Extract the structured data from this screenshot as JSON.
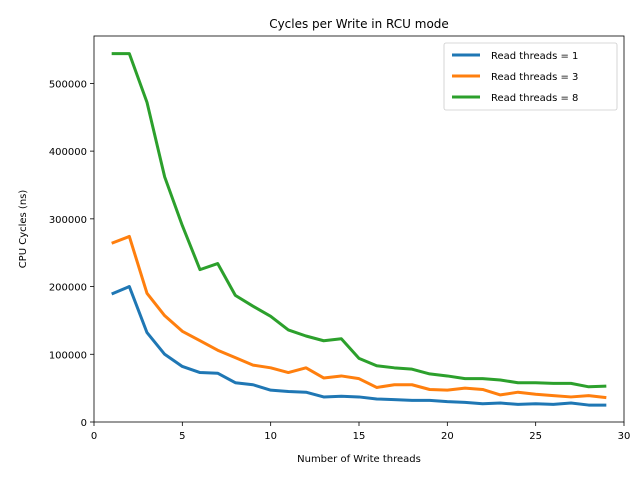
{
  "chart_data": {
    "type": "line",
    "title": "Cycles per Write in RCU mode",
    "xlabel": "Number of Write threads",
    "ylabel": "CPU Cycles (ns)",
    "xlim": [
      0,
      30
    ],
    "ylim": [
      0,
      570000
    ],
    "xticks": [
      0,
      5,
      10,
      15,
      20,
      25,
      30
    ],
    "yticks": [
      0,
      100000,
      200000,
      300000,
      400000,
      500000
    ],
    "grid": false,
    "legend_position": "top-right",
    "x": [
      1,
      2,
      3,
      4,
      5,
      6,
      7,
      8,
      9,
      10,
      11,
      12,
      13,
      14,
      15,
      16,
      17,
      18,
      19,
      20,
      21,
      22,
      23,
      24,
      25,
      26,
      27,
      28,
      29
    ],
    "series": [
      {
        "name": "Read threads = 1",
        "color": "#1f77b4",
        "values": [
          189000,
          200000,
          132000,
          100000,
          82000,
          73000,
          72000,
          58000,
          55000,
          47000,
          45000,
          44000,
          37000,
          38000,
          37000,
          34000,
          33000,
          32000,
          32000,
          30000,
          29000,
          27000,
          28000,
          26000,
          27000,
          26000,
          28000,
          25000,
          25000
        ]
      },
      {
        "name": "Read threads = 3",
        "color": "#ff7f0e",
        "values": [
          264000,
          274000,
          190000,
          157000,
          134000,
          120000,
          106000,
          95000,
          84000,
          80000,
          73000,
          80000,
          65000,
          68000,
          64000,
          51000,
          55000,
          55000,
          48000,
          47000,
          50000,
          48000,
          40000,
          44000,
          41000,
          39000,
          37000,
          39000,
          36000
        ]
      },
      {
        "name": "Read threads = 8",
        "color": "#2ca02c",
        "values": [
          544000,
          544000,
          472000,
          362000,
          290000,
          225000,
          234000,
          187000,
          171000,
          156000,
          136000,
          127000,
          120000,
          123000,
          94000,
          83000,
          80000,
          78000,
          71000,
          68000,
          64000,
          64000,
          62000,
          58000,
          58000,
          57000,
          57000,
          52000,
          53000
        ]
      }
    ]
  }
}
